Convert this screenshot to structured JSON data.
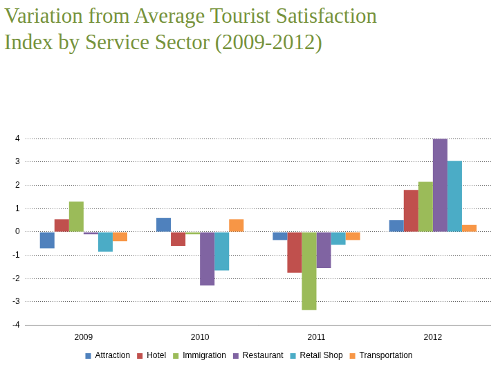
{
  "chart_data": {
    "type": "bar",
    "title": "Variation from Average Tourist Satisfaction Index by Service Sector (2009-2012)",
    "categories": [
      "2009",
      "2010",
      "2011",
      "2012"
    ],
    "series": [
      {
        "name": "Attraction",
        "color": "#4F81BD",
        "values": [
          -0.7,
          0.6,
          -0.35,
          0.5
        ]
      },
      {
        "name": "Hotel",
        "color": "#C0504D",
        "values": [
          0.55,
          -0.6,
          -1.75,
          1.8
        ]
      },
      {
        "name": "Immigration",
        "color": "#9BBB59",
        "values": [
          1.3,
          -0.1,
          -3.35,
          2.15
        ]
      },
      {
        "name": "Restaurant",
        "color": "#8064A2",
        "values": [
          -0.1,
          -2.3,
          -1.55,
          4.0
        ]
      },
      {
        "name": "Retail Shop",
        "color": "#4BACC6",
        "values": [
          -0.85,
          -1.65,
          -0.55,
          3.05
        ]
      },
      {
        "name": "Transportation",
        "color": "#F79646",
        "values": [
          -0.4,
          0.55,
          -0.35,
          0.3
        ]
      }
    ],
    "ylim": [
      -4,
      4
    ],
    "yticks": [
      -4,
      -3,
      -2,
      -1,
      0,
      1,
      2,
      3,
      4
    ],
    "grid": true,
    "legend": "bottom"
  }
}
